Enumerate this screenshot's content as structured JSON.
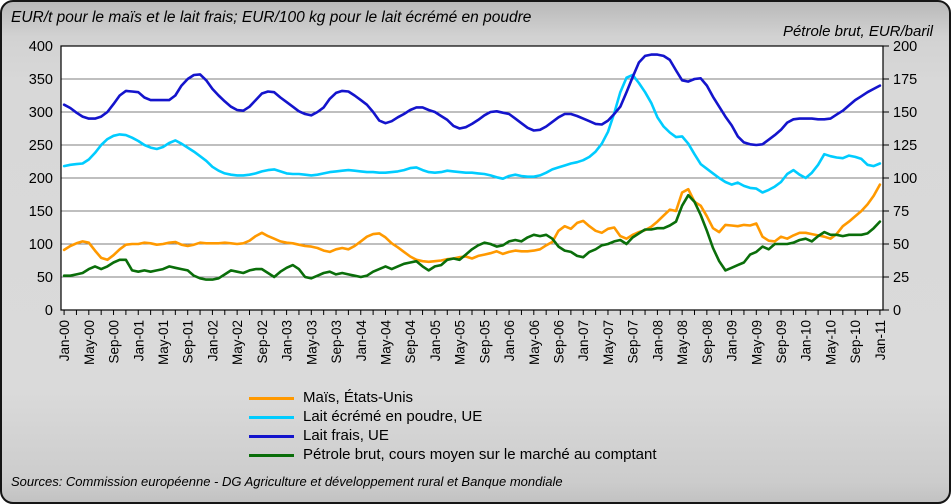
{
  "header": {
    "left_title": "EUR/t pour le maïs et le lait frais; EUR/100 kg pour le lait écrémé en poudre",
    "right_title": "Pétrole brut, EUR/baril"
  },
  "footer": {
    "sources": "Sources: Commission européenne - DG Agriculture et développement rural et Banque mondiale"
  },
  "colors": {
    "background": "#D6D6D6",
    "plot_background": "#FFFFFF",
    "gridline": "#7F7F7F",
    "plot_border": "#000000",
    "maize": "#FF9900",
    "smp": "#00CCFF",
    "fresh_milk": "#1414CC",
    "crude_oil": "#0A6E0A"
  },
  "chart_data": {
    "type": "line",
    "title": "EUR/t pour le maïs et le lait frais; EUR/100 kg pour le lait écrémé en poudre",
    "right_axis_title": "Pétrole brut, EUR/baril",
    "grid": "horizontal",
    "legend_position": "bottom",
    "x": {
      "months": 133,
      "start": "Jan-00",
      "end": "Jan-11",
      "tick_label_every_months": 4,
      "tick_mark_every_months": 2,
      "tick_labels": [
        "Jan-00",
        "May-00",
        "Sep-00",
        "Jan-01",
        "May-01",
        "Sep-01",
        "Jan-02",
        "May-02",
        "Sep-02",
        "Jan-03",
        "May-03",
        "Sep-03",
        "Jan-04",
        "May-04",
        "Sep-04",
        "Jan-05",
        "May-05",
        "Sep-05",
        "Jan-06",
        "May-06",
        "Sep-06",
        "Jan-07",
        "May-07",
        "Sep-07",
        "Jan-08",
        "May-08",
        "Sep-08",
        "Jan-09",
        "May-09",
        "Sep-09",
        "Jan-10",
        "May-10",
        "Sep-10",
        "Jan-11"
      ]
    },
    "left_axis": {
      "min": 0,
      "max": 400,
      "step": 50,
      "labels": [
        "400",
        "350",
        "300",
        "250",
        "200",
        "150",
        "100",
        "50",
        "0"
      ]
    },
    "right_axis": {
      "min": 0,
      "max": 200,
      "step": 25,
      "labels": [
        "200",
        "175",
        "150",
        "125",
        "100",
        "75",
        "50",
        "25",
        "0"
      ]
    },
    "series": [
      {
        "name": "Maïs, États-Unis",
        "color": "#FF9900",
        "axis": "left",
        "values": [
          91,
          97,
          101,
          104,
          102,
          90,
          79,
          76,
          83,
          92,
          99,
          100,
          100,
          102,
          101,
          99,
          100,
          102,
          103,
          99,
          97,
          99,
          102,
          101,
          101,
          101,
          102,
          101,
          100,
          101,
          105,
          112,
          117,
          112,
          108,
          104,
          102,
          101,
          99,
          97,
          96,
          94,
          90,
          88,
          92,
          94,
          92,
          97,
          104,
          111,
          115,
          116,
          110,
          101,
          95,
          88,
          81,
          76,
          74,
          73,
          74,
          75,
          77,
          78,
          80,
          81,
          78,
          82,
          84,
          86,
          89,
          85,
          88,
          90,
          89,
          89,
          90,
          92,
          98,
          103,
          120,
          127,
          123,
          132,
          135,
          127,
          120,
          117,
          123,
          125,
          112,
          108,
          114,
          118,
          121,
          126,
          134,
          143,
          152,
          150,
          178,
          183,
          164,
          158,
          142,
          124,
          118,
          129,
          128,
          127,
          129,
          128,
          131,
          111,
          105,
          104,
          111,
          108,
          113,
          117,
          117,
          115,
          113,
          111,
          108,
          115,
          127,
          134,
          142,
          150,
          160,
          173,
          190
        ]
      },
      {
        "name": "Lait écrémé en poudre, UE",
        "color": "#00CCFF",
        "axis": "left",
        "values": [
          218,
          220,
          221,
          222,
          228,
          238,
          250,
          259,
          264,
          266,
          265,
          261,
          256,
          250,
          246,
          244,
          247,
          253,
          257,
          252,
          246,
          240,
          233,
          226,
          217,
          211,
          207,
          205,
          204,
          204,
          205,
          207,
          210,
          212,
          213,
          210,
          207,
          206,
          206,
          205,
          204,
          205,
          207,
          209,
          210,
          211,
          212,
          211,
          210,
          209,
          209,
          208,
          208,
          209,
          210,
          212,
          215,
          216,
          212,
          209,
          208,
          209,
          211,
          210,
          209,
          208,
          208,
          207,
          206,
          204,
          201,
          199,
          203,
          205,
          203,
          202,
          202,
          204,
          208,
          213,
          216,
          219,
          222,
          224,
          227,
          232,
          240,
          252,
          270,
          298,
          330,
          352,
          356,
          344,
          330,
          314,
          292,
          278,
          269,
          262,
          263,
          252,
          236,
          221,
          214,
          207,
          200,
          194,
          190,
          193,
          188,
          185,
          184,
          178,
          182,
          187,
          194,
          206,
          212,
          205,
          200,
          208,
          220,
          236,
          233,
          231,
          230,
          234,
          232,
          229,
          220,
          218,
          222
        ]
      },
      {
        "name": "Lait frais, UE",
        "color": "#1414CC",
        "axis": "left",
        "values": [
          311,
          306,
          299,
          293,
          290,
          290,
          293,
          300,
          312,
          325,
          332,
          331,
          330,
          322,
          318,
          318,
          318,
          318,
          325,
          340,
          350,
          356,
          357,
          348,
          335,
          325,
          316,
          308,
          303,
          302,
          308,
          318,
          328,
          331,
          330,
          322,
          315,
          308,
          301,
          297,
          295,
          300,
          307,
          320,
          329,
          332,
          331,
          325,
          318,
          311,
          300,
          287,
          283,
          286,
          292,
          297,
          303,
          307,
          307,
          303,
          300,
          294,
          288,
          279,
          275,
          277,
          282,
          288,
          295,
          300,
          301,
          299,
          297,
          290,
          283,
          276,
          272,
          273,
          278,
          285,
          292,
          297,
          297,
          294,
          290,
          286,
          282,
          281,
          287,
          297,
          308,
          330,
          353,
          375,
          385,
          387,
          387,
          385,
          379,
          363,
          348,
          346,
          350,
          351,
          340,
          323,
          308,
          293,
          280,
          263,
          254,
          251,
          250,
          251,
          258,
          265,
          273,
          284,
          289,
          290,
          290,
          290,
          289,
          289,
          290,
          296,
          302,
          310,
          318,
          324,
          330,
          335,
          340
        ]
      },
      {
        "name": "Pétrole brut, cours moyen sur le marché au comptant",
        "color": "#0A6E0A",
        "axis": "right",
        "values": [
          26,
          26,
          27,
          28,
          31,
          33,
          31,
          33,
          36,
          38,
          38,
          30,
          29,
          30,
          29,
          30,
          31,
          33,
          32,
          31,
          30,
          26,
          24,
          23,
          23,
          24,
          27,
          30,
          29,
          28,
          30,
          31,
          31,
          28,
          25,
          29,
          32,
          34,
          31,
          25,
          24,
          26,
          28,
          29,
          27,
          28,
          27,
          26,
          25,
          26,
          29,
          31,
          33,
          31,
          33,
          35,
          36,
          37,
          33,
          30,
          33,
          34,
          38,
          39,
          38,
          42,
          46,
          49,
          51,
          50,
          48,
          49,
          52,
          53,
          52,
          55,
          57,
          56,
          57,
          54,
          48,
          45,
          44,
          41,
          40,
          44,
          46,
          49,
          50,
          52,
          53,
          50,
          55,
          58,
          61,
          61,
          62,
          62,
          64,
          67,
          79,
          87,
          82,
          72,
          60,
          47,
          37,
          30,
          32,
          34,
          36,
          42,
          44,
          48,
          46,
          50,
          50,
          50,
          51,
          53,
          54,
          52,
          56,
          59,
          57,
          57,
          56,
          57,
          57,
          57,
          58,
          62,
          67
        ]
      }
    ]
  }
}
